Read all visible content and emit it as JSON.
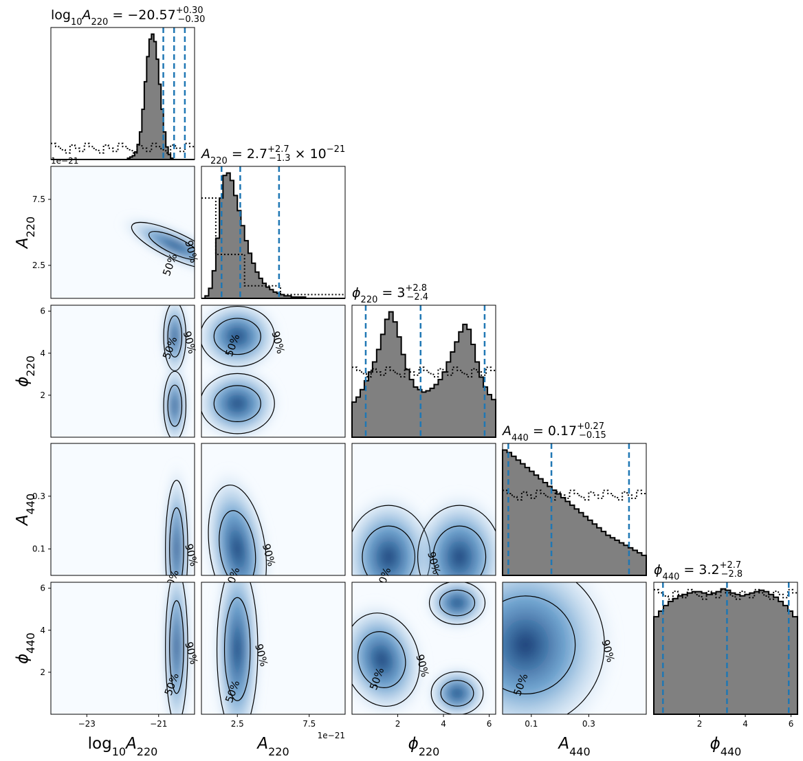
{
  "chart_data": {
    "type": "corner",
    "parameters": [
      {
        "key": "log10A220",
        "label": "log10A220",
        "range": [
          -24,
          -20
        ],
        "ticks": [
          {
            "v": -23,
            "t": "−23"
          },
          {
            "v": -21,
            "t": "−21"
          }
        ],
        "offset": "",
        "title": {
          "prefix": "log10A220 = ",
          "median": "−20.57",
          "plus": "+0.30",
          "minus": "−0.30",
          "suffix": ""
        },
        "quantiles": [
          -20.87,
          -20.57,
          -20.27
        ]
      },
      {
        "key": "A220",
        "label": "A220",
        "range": [
          0,
          10
        ],
        "ticks": [
          {
            "v": 2.5,
            "t": "2.5"
          },
          {
            "v": 7.5,
            "t": "7.5"
          }
        ],
        "offset": "1e−21",
        "title": {
          "prefix": "A220 = ",
          "median": "2.7",
          "plus": "+2.7",
          "minus": "−1.3",
          "suffix": " × 10−21"
        },
        "quantiles": [
          1.4,
          2.7,
          5.4
        ]
      },
      {
        "key": "phi220",
        "label": "ϕ220",
        "range": [
          0,
          6.2832
        ],
        "ticks": [
          {
            "v": 2,
            "t": "2"
          },
          {
            "v": 4,
            "t": "4"
          },
          {
            "v": 6,
            "t": "6"
          }
        ],
        "offset": "",
        "title": {
          "prefix": "ϕ220 = ",
          "median": "3",
          "plus": "+2.8",
          "minus": "−2.4",
          "suffix": ""
        },
        "quantiles": [
          0.6,
          3.0,
          5.8
        ]
      },
      {
        "key": "A440",
        "label": "A440",
        "range": [
          0,
          0.5
        ],
        "ticks": [
          {
            "v": 0.1,
            "t": "0.1"
          },
          {
            "v": 0.3,
            "t": "0.3"
          }
        ],
        "offset": "",
        "title": {
          "prefix": "A440 = ",
          "median": "0.17",
          "plus": "+0.27",
          "minus": "−0.15",
          "suffix": ""
        },
        "quantiles": [
          0.02,
          0.17,
          0.44
        ]
      },
      {
        "key": "phi440",
        "label": "ϕ440",
        "range": [
          0,
          6.2832
        ],
        "ticks": [
          {
            "v": 2,
            "t": "2"
          },
          {
            "v": 4,
            "t": "4"
          },
          {
            "v": 6,
            "t": "6"
          }
        ],
        "offset": "",
        "title": {
          "prefix": "ϕ440 = ",
          "median": "3.2",
          "plus": "+2.7",
          "minus": "−2.8",
          "suffix": ""
        },
        "quantiles": [
          0.4,
          3.2,
          5.9
        ]
      }
    ],
    "contour_labels": [
      "50%",
      "90%"
    ],
    "colors": {
      "hist_fill": "#808080",
      "hist_line": "#000000",
      "quantile": "#1f77b4",
      "density_low": "#f7fbff",
      "density_high": "#08306b",
      "contour": "#000000"
    },
    "marginals": {
      "log10A220": {
        "posterior": [
          0,
          0,
          0,
          0,
          0,
          0,
          0,
          0,
          0,
          0,
          0,
          0,
          0,
          0,
          0,
          0,
          0,
          0,
          0,
          0,
          0,
          0,
          0,
          0,
          0,
          0,
          0,
          0,
          0,
          0,
          0,
          0,
          1,
          2,
          3,
          6,
          12,
          22,
          40,
          62,
          82,
          96,
          100,
          94,
          80,
          60,
          40,
          22,
          10,
          4,
          1,
          0,
          0,
          0,
          0,
          0,
          0,
          0,
          0,
          0
        ],
        "prior_level": 9
      },
      "A220": {
        "posterior": [
          0,
          2,
          8,
          22,
          48,
          80,
          98,
          100,
          94,
          82,
          70,
          58,
          46,
          36,
          28,
          21,
          16,
          12,
          9,
          7,
          5,
          4,
          3,
          2,
          2,
          1,
          1,
          1,
          1,
          0,
          0,
          0,
          0,
          0,
          0,
          0,
          0,
          0,
          0,
          0
        ],
        "prior_steps": [
          [
            0,
            1,
            80
          ],
          [
            1,
            3,
            35
          ],
          [
            3,
            5.5,
            10
          ],
          [
            5.5,
            10,
            3
          ]
        ]
      },
      "phi220": {
        "posterior": [
          28,
          32,
          38,
          45,
          52,
          60,
          70,
          82,
          94,
          100,
          92,
          80,
          66,
          54,
          46,
          40,
          38,
          36,
          37,
          39,
          42,
          46,
          52,
          60,
          68,
          76,
          84,
          90,
          86,
          74,
          60,
          48,
          40,
          34,
          30
        ],
        "prior_level": 52
      },
      "A440": {
        "posterior": [
          100,
          98,
          95,
          92,
          89,
          86,
          83,
          80,
          77,
          74,
          71,
          68,
          65,
          62,
          59,
          56,
          53,
          50,
          47,
          44,
          41,
          38,
          35,
          32,
          30,
          28,
          26,
          24,
          22,
          20,
          18,
          16
        ],
        "prior_level": 64
      },
      "phi440": {
        "posterior": [
          70,
          74,
          78,
          81,
          83,
          85,
          86,
          87,
          88,
          88,
          87,
          86,
          87,
          88,
          90,
          89,
          87,
          86,
          85,
          86,
          87,
          88,
          89,
          88,
          86,
          84,
          81,
          78,
          74,
          70
        ],
        "prior_level": 86
      }
    }
  }
}
